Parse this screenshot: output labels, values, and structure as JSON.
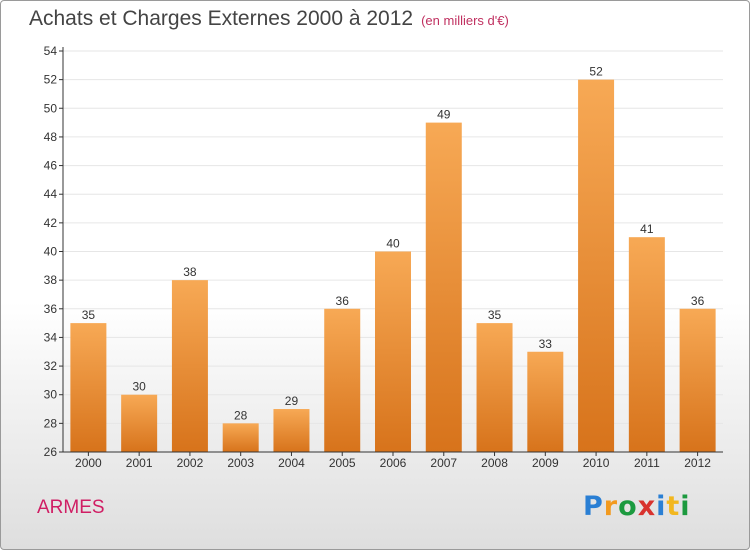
{
  "title": "Achats et Charges Externes 2000 à 2012",
  "subtitle": "(en milliers d'€)",
  "commune": "ARMES",
  "logo": {
    "letters": [
      "P",
      "r",
      "o",
      "x",
      "i",
      "t",
      "i"
    ],
    "colors": [
      "#2a7fd4",
      "#f29a1f",
      "#1c9a3f",
      "#d8322e",
      "#2a7fd4",
      "#f2b71f",
      "#1c9a3f"
    ]
  },
  "colors": {
    "bar_top": "#f7a955",
    "bar_bottom": "#d7731b",
    "grid": "#e6e6e6",
    "axis": "#333333"
  },
  "chart_data": {
    "type": "bar",
    "categories": [
      "2000",
      "2001",
      "2002",
      "2003",
      "2004",
      "2005",
      "2006",
      "2007",
      "2008",
      "2009",
      "2010",
      "2011",
      "2012"
    ],
    "values": [
      35,
      30,
      38,
      28,
      29,
      36,
      40,
      49,
      35,
      33,
      52,
      41,
      36
    ],
    "ylim": [
      26,
      54
    ],
    "yticks": [
      26,
      28,
      30,
      32,
      34,
      36,
      38,
      40,
      42,
      44,
      46,
      48,
      50,
      52,
      54
    ],
    "grid": true
  }
}
